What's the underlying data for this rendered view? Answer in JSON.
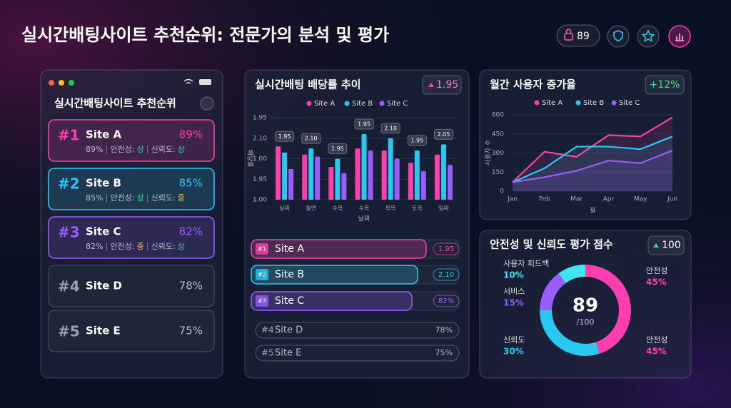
{
  "header": {
    "title": "실시간배팅사이트 추천순위: 전문가의 분석 및 평가",
    "badge": "89"
  },
  "ranking_panel": {
    "title": "실시간배팅사이트 추천순위",
    "items": [
      {
        "rank": "#1",
        "name": "Site A",
        "score": "89%",
        "color": "#ff3fae",
        "detail": {
          "score": "89%",
          "safety_label": "안전성:",
          "safety": {
            "text": "상",
            "color": "#3ddc84"
          },
          "trust_label": "신뢰도:",
          "trust": {
            "text": "상",
            "color": "#3ddc84"
          }
        }
      },
      {
        "rank": "#2",
        "name": "Site B",
        "score": "85%",
        "color": "#29c8f0",
        "detail": {
          "score": "85%",
          "safety_label": "안전성:",
          "safety": {
            "text": "상",
            "color": "#3ddc84"
          },
          "trust_label": "신뢰도:",
          "trust": {
            "text": "중",
            "color": "#f5c542"
          }
        }
      },
      {
        "rank": "#3",
        "name": "Site C",
        "score": "82%",
        "color": "#9b5cff",
        "detail": {
          "score": "82%",
          "safety_label": "안전성:",
          "safety": {
            "text": "중",
            "color": "#f5c542"
          },
          "trust_label": "신뢰도:",
          "trust": {
            "text": "상",
            "color": "#3ddc84"
          }
        }
      },
      {
        "rank": "#4",
        "name": "Site D",
        "score": "78%",
        "color": "#8a8f9c"
      },
      {
        "rank": "#5",
        "name": "Site E",
        "score": "75%",
        "color": "#8a8f9c"
      }
    ]
  },
  "odds_chart": {
    "type": "bar",
    "title": "실시간배팅 배당률 추이",
    "badge": "1.95",
    "y_label": "배당률",
    "x_label": "날짜",
    "categories": [
      "날짜",
      "월면",
      "수목",
      "수목",
      "목목",
      "토목",
      "일짜"
    ],
    "series": [
      {
        "name": "Site A",
        "color": "#ff3fae",
        "values": [
          2.6,
          2.2,
          1.6,
          2.5,
          2.4,
          1.8,
          2.2
        ]
      },
      {
        "name": "Site B",
        "color": "#29c8f0",
        "values": [
          2.3,
          2.5,
          2.0,
          3.2,
          3.0,
          2.4,
          2.7
        ]
      },
      {
        "name": "Site C",
        "color": "#9b5cff",
        "values": [
          1.5,
          2.1,
          1.3,
          2.4,
          2.0,
          1.4,
          1.7
        ]
      }
    ],
    "annotations": [
      "1.95",
      "2.10",
      "1.95",
      "1.95",
      "2.10",
      "1.95",
      "2.05"
    ],
    "ylim": [
      0,
      4
    ],
    "yticks": [
      {
        "value": 0,
        "label": "1.00"
      },
      {
        "value": 1,
        "label": "1.95"
      },
      {
        "value": 2,
        "label": "1.00"
      },
      {
        "value": 3,
        "label": "2.10"
      },
      {
        "value": 4,
        "label": "1.95"
      }
    ]
  },
  "odds_list": {
    "items": [
      {
        "rank": "#1",
        "name": "Site A",
        "value": "1.95",
        "color": "#ff3fae"
      },
      {
        "rank": "#2",
        "name": "Site B",
        "value": "2.10",
        "color": "#29c8f0"
      },
      {
        "rank": "#3",
        "name": "Site C",
        "value": "82%",
        "color": "#9b5cff"
      },
      {
        "rank": "#4",
        "name": "Site D",
        "value": "78%",
        "color": "#8a8f9c"
      },
      {
        "rank": "#5",
        "name": "Site E",
        "value": "75%",
        "color": "#8a8f9c"
      }
    ]
  },
  "growth_chart": {
    "type": "line",
    "title": "월간 사용자 증가율",
    "badge": "+12%",
    "y_label": "사용자 수",
    "x_label": "월",
    "categories": [
      "Jan",
      "Feb",
      "Mar",
      "Apr",
      "May",
      "Jun"
    ],
    "series": [
      {
        "name": "Site A",
        "color": "#ff3fae",
        "values": [
          70,
          310,
          270,
          440,
          430,
          580
        ]
      },
      {
        "name": "Site B",
        "color": "#29c8f0",
        "values": [
          70,
          180,
          350,
          350,
          330,
          430
        ]
      },
      {
        "name": "Site C",
        "color": "#9b5cff",
        "values": [
          70,
          110,
          160,
          240,
          220,
          320
        ]
      }
    ],
    "ylim": [
      0,
      600
    ],
    "yticks": [
      0,
      150,
      300,
      450,
      600
    ]
  },
  "score_chart": {
    "type": "donut",
    "title": "안전성 및 신뢰도 평가 점수",
    "badge": "100",
    "center_value": "89",
    "center_suffix": "/100",
    "categories": [
      "안전성",
      "신뢰도",
      "서비스",
      "사용자 피드백"
    ],
    "values": [
      45,
      30,
      15,
      10
    ],
    "value_labels": [
      "45%",
      "30%",
      "15%",
      "10%"
    ],
    "colors": [
      "#ff3fae",
      "#29c8f0",
      "#9b5cff",
      "#3ee6f0"
    ],
    "extra_label": {
      "label": "안전성",
      "value_label": "45%"
    }
  }
}
